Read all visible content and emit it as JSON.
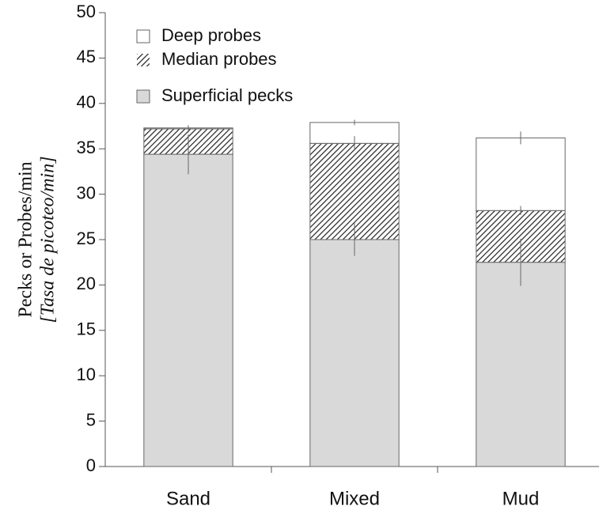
{
  "chart_data": {
    "type": "stacked_bar",
    "ylabel": "Pecks or Probes/min",
    "ylabel2": "[Tasa de picoteo/min]",
    "categories": [
      "Sand",
      "Mixed",
      "Mud"
    ],
    "series": [
      {
        "name": "Superficial pecks",
        "color": "#d9d9d9",
        "pattern": "solid",
        "values": [
          34.4,
          25.0,
          22.5
        ],
        "errors": [
          2.2,
          1.8,
          2.6
        ]
      },
      {
        "name": "Median probes",
        "color": "#222222",
        "pattern": "hatch",
        "values": [
          2.8,
          10.6,
          5.7
        ],
        "errors": [
          0.4,
          0.8,
          0.5
        ]
      },
      {
        "name": "Deep probes",
        "color": "#ffffff",
        "pattern": "solid",
        "values": [
          0.1,
          2.3,
          8.0
        ],
        "errors": [
          null,
          0.3,
          0.7
        ]
      }
    ],
    "ylim": [
      0,
      50
    ],
    "yticks": [
      0,
      5,
      10,
      15,
      20,
      25,
      30,
      35,
      40,
      45,
      50
    ],
    "legend": "top-left"
  }
}
